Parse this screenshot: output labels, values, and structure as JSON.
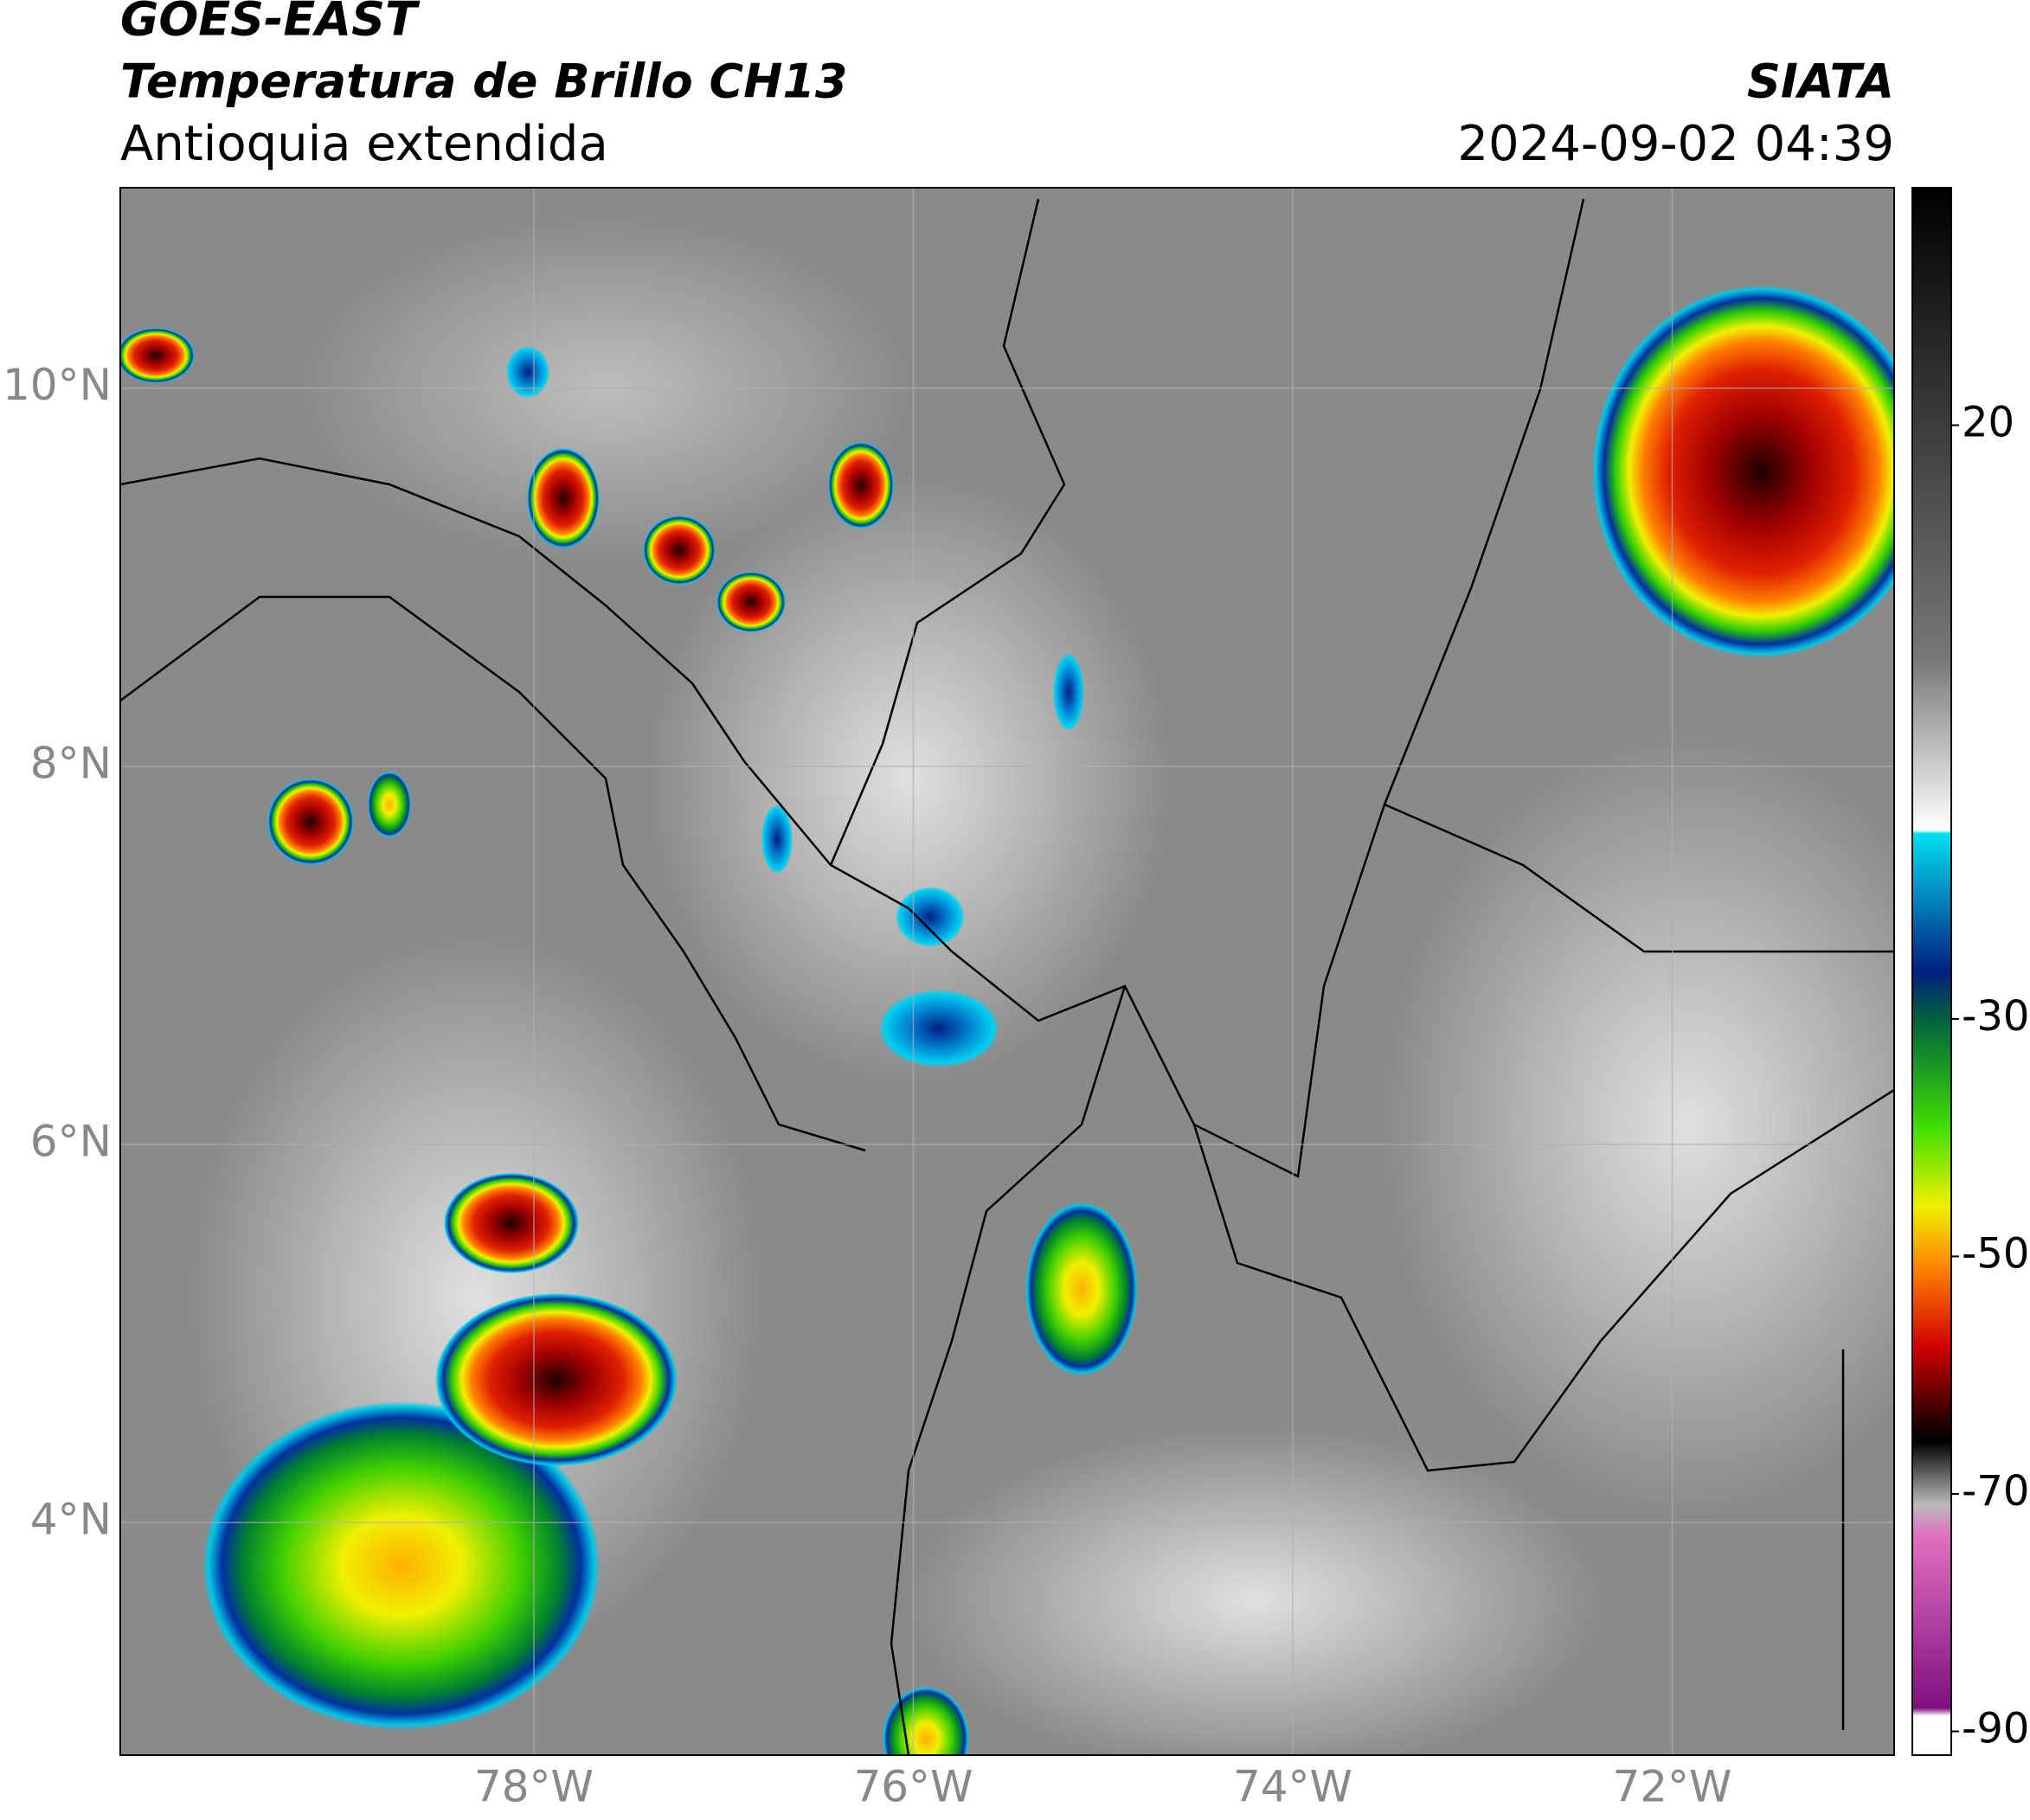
{
  "header": {
    "satellite": "GOES-EAST",
    "product": "Temperatura de Brillo CH13",
    "region": "Antioquia extendida",
    "source": "SIATA",
    "datetime": "2024-09-02 04:39"
  },
  "map": {
    "xlim": [
      -80.18,
      -70.83
    ],
    "ylim": [
      2.77,
      11.06
    ],
    "xticks": [
      {
        "value": -78,
        "label": "78°W"
      },
      {
        "value": -76,
        "label": "76°W"
      },
      {
        "value": -74,
        "label": "74°W"
      },
      {
        "value": -72,
        "label": "72°W"
      }
    ],
    "yticks": [
      {
        "value": 4,
        "label": "4°N"
      },
      {
        "value": 6,
        "label": "6°N"
      },
      {
        "value": 8,
        "label": "8°N"
      },
      {
        "value": 10,
        "label": "10°N"
      }
    ],
    "grid": true
  },
  "colorbar": {
    "lim": [
      -92,
      40
    ],
    "ticks": [
      20,
      -30,
      -50,
      -70,
      -90
    ]
  }
}
